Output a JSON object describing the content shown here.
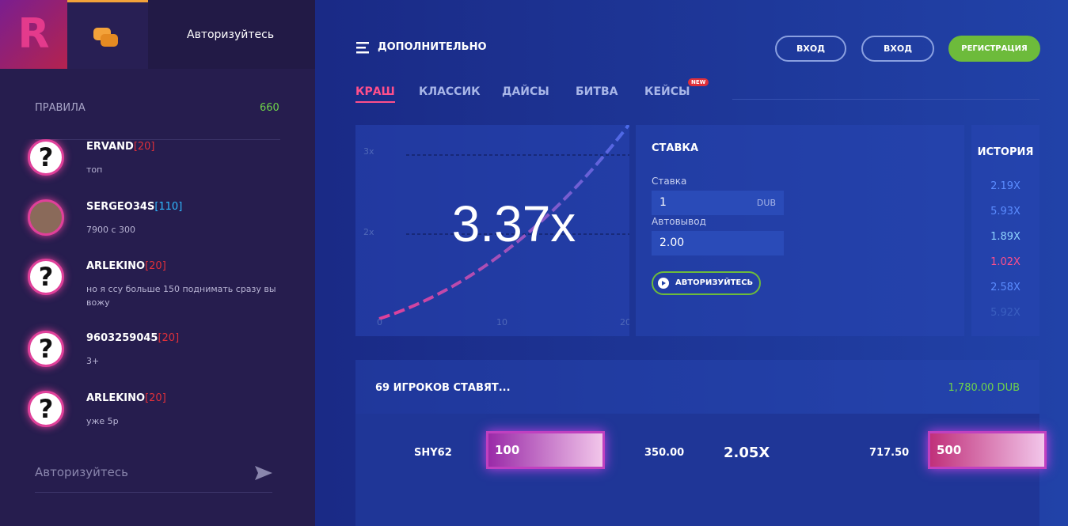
{
  "sidebar": {
    "logo": "R",
    "auth": "Авторизуйтесь",
    "rules": "ПРАВИЛА",
    "online": "660",
    "messages": [
      {
        "avatar": "?",
        "name": "ERVAND",
        "level": "[20]",
        "text": "топ"
      },
      {
        "name": "SERGEO34S",
        "level": "[110]",
        "level_color": "#2fb8ff",
        "text": "7900 с 300"
      },
      {
        "avatar": "?",
        "name": "ARLEKINO",
        "level": "[20]",
        "text": "но я ссу больше 150 поднимать сразу вы вожу"
      },
      {
        "avatar": "?",
        "name": "9603259045",
        "level": "[20]",
        "text": "3+"
      },
      {
        "avatar": "?",
        "name": "ARLEKINO",
        "level": "[20]",
        "text": "уже 5р"
      }
    ],
    "input_placeholder": "Авторизуйтесь"
  },
  "header": {
    "menu": "ДОПОЛНИТЕЛЬНО",
    "vk_login": "ВХОД",
    "login": "ВХОД",
    "register": "РЕГИСТРАЦИЯ"
  },
  "tabs": {
    "items": [
      "КРАШ",
      "КЛАССИК",
      "ДАЙСЫ",
      "БИТВА",
      "КЕЙСЫ"
    ],
    "badge": "NEW"
  },
  "graph": {
    "multiplier": "3.37x",
    "y_labels": [
      "3x",
      "2x"
    ],
    "x_labels": [
      "0",
      "10",
      "20"
    ]
  },
  "bet": {
    "title": "СТАВКА",
    "stake_label": "Ставка",
    "stake": "1",
    "currency": "DUB",
    "auto_label": "Автовывод",
    "auto": "2.00",
    "button": "АВТОРИЗУЙТЕСЬ"
  },
  "history": {
    "title": "ИСТОРИЯ",
    "items": [
      {
        "text": "2.19X",
        "color": "#5b8cff"
      },
      {
        "text": "5.93X",
        "color": "#5b8cff"
      },
      {
        "text": "1.89X",
        "color": "#8fd3ff"
      },
      {
        "text": "1.02X",
        "color": "#ff4f8b"
      },
      {
        "text": "2.58X",
        "color": "#5b8cff"
      },
      {
        "text": "5.92X",
        "color": "#3a5fc0"
      }
    ]
  },
  "players": {
    "title": "69 ИГРОКОВ СТАВЯТ...",
    "total": "1,780.00 DUB",
    "rows": [
      {
        "name": "SHY62",
        "bet_note": "100",
        "bet": "350.00",
        "multiplier": "2.05X",
        "win": "717.50",
        "win_note": "500"
      }
    ]
  }
}
